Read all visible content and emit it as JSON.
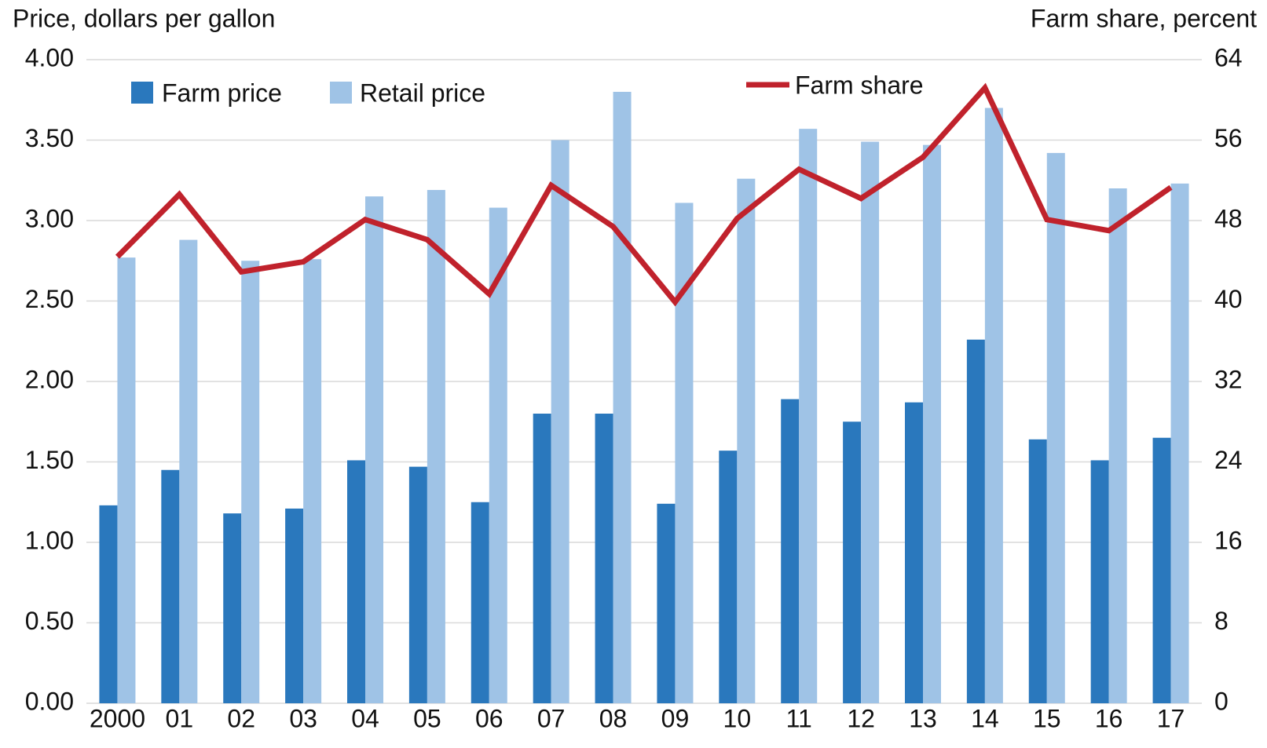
{
  "chart_data": {
    "type": "bar",
    "y_label": "Price, dollars per gallon",
    "y2_label": "Farm share, percent",
    "categories": [
      "2000",
      "01",
      "02",
      "03",
      "04",
      "05",
      "06",
      "07",
      "08",
      "09",
      "10",
      "11",
      "12",
      "13",
      "14",
      "15",
      "16",
      "17"
    ],
    "series": [
      {
        "name": "Farm price",
        "color": "#2a78bd",
        "type": "bar",
        "values": [
          1.23,
          1.45,
          1.18,
          1.21,
          1.51,
          1.47,
          1.25,
          1.8,
          1.8,
          1.24,
          1.57,
          1.89,
          1.75,
          1.87,
          2.26,
          1.64,
          1.51,
          1.65
        ]
      },
      {
        "name": "Retail price",
        "color": "#9fc3e6",
        "type": "bar",
        "values": [
          2.77,
          2.88,
          2.75,
          2.76,
          3.15,
          3.19,
          3.08,
          3.5,
          3.8,
          3.11,
          3.26,
          3.57,
          3.49,
          3.47,
          3.7,
          3.42,
          3.2,
          3.23
        ]
      },
      {
        "name": "Farm share",
        "color": "#c0222c",
        "type": "line",
        "axis": "y2",
        "values": [
          44.4,
          50.6,
          42.9,
          43.9,
          48.1,
          46.1,
          40.7,
          51.5,
          47.4,
          39.9,
          48.2,
          53.1,
          50.2,
          54.3,
          61.2,
          48.1,
          47.0,
          51.3
        ]
      }
    ],
    "ylim": [
      0,
      4
    ],
    "yticks": [
      {
        "value": 0,
        "label": "0.00"
      },
      {
        "value": 0.5,
        "label": "0.50"
      },
      {
        "value": 1,
        "label": "1.00"
      },
      {
        "value": 1.5,
        "label": "1.50"
      },
      {
        "value": 2,
        "label": "2.00"
      },
      {
        "value": 2.5,
        "label": "2.50"
      },
      {
        "value": 3,
        "label": "3.00"
      },
      {
        "value": 3.5,
        "label": "3.50"
      },
      {
        "value": 4,
        "label": "4.00"
      }
    ],
    "y2lim": [
      0,
      64
    ],
    "y2ticks": [
      0,
      8,
      16,
      24,
      32,
      40,
      48,
      56,
      64
    ],
    "grid": true
  }
}
